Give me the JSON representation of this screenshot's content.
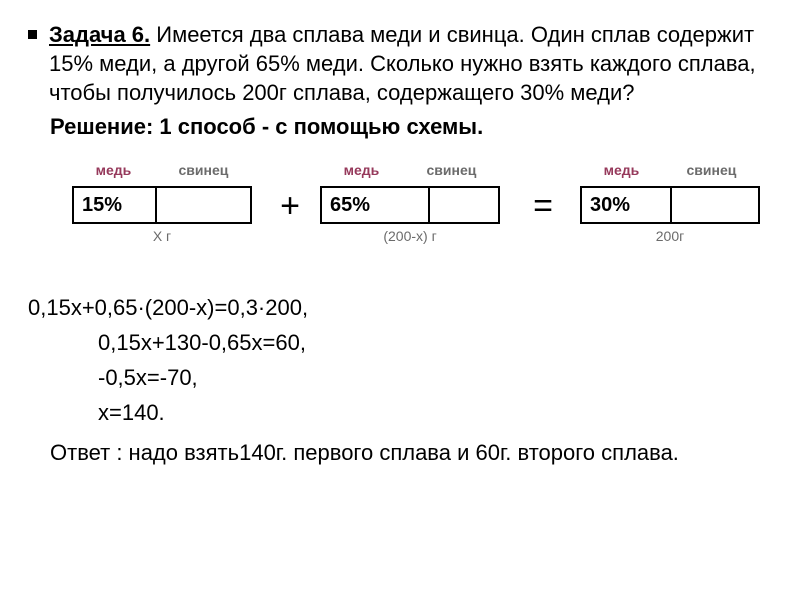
{
  "problem": {
    "title": "Задача 6.",
    "text": " Имеется два сплава меди и свинца. Один сплав содержит 15% меди, а другой 65% меди. Сколько нужно взять каждого сплава, чтобы получилось 200г сплава, содержащего 30% меди?"
  },
  "solution_header": "Решение: 1 способ - с помощью схемы.",
  "diagram": {
    "copper_label": "медь",
    "lead_label": "свинец",
    "copper_color": "#96395b",
    "lead_color": "#6b6b6b",
    "border_color": "#000000",
    "alloy1": {
      "percent": "15%",
      "mass": "X г",
      "divider_left_pct": 46
    },
    "alloy2": {
      "percent": "65%",
      "mass": "(200-х) г",
      "divider_left_pct": 60
    },
    "alloy3": {
      "percent": "30%",
      "mass": "200г",
      "divider_left_pct": 50
    },
    "plus": "+",
    "equals": "="
  },
  "calc": {
    "line1": "0,15х+0,65·(200-х)=0,3·200,",
    "line2": "0,15х+130-0,65х=60,",
    "line3": "-0,5х=-70,",
    "line4": "х=140."
  },
  "answer": "Ответ : надо взять140г. первого сплава и 60г. второго сплава."
}
